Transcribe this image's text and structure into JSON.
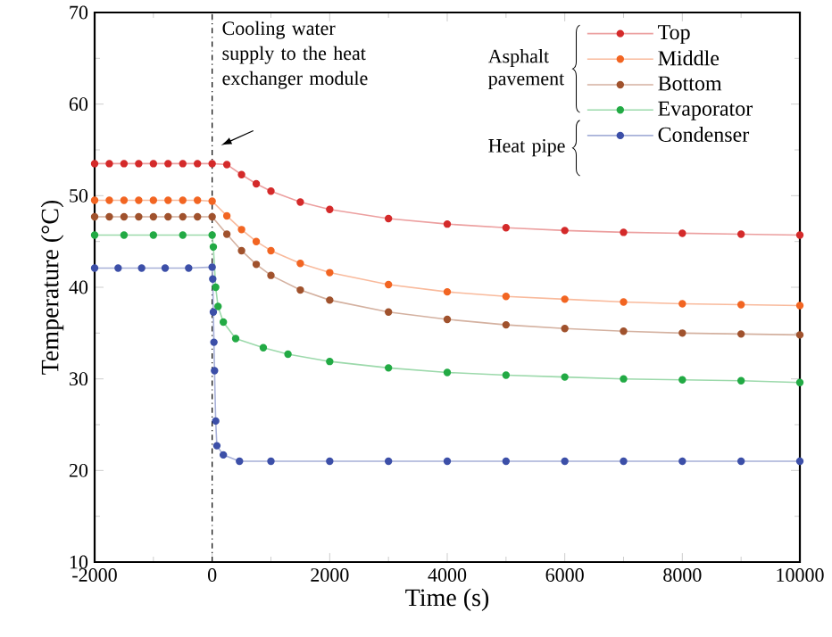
{
  "chart_data": {
    "type": "line",
    "xlabel": "Time (s)",
    "ylabel": "Temperature (°C)",
    "xlim": [
      -2000,
      10000
    ],
    "ylim": [
      10,
      70
    ],
    "xticks": [
      -2000,
      0,
      2000,
      4000,
      6000,
      8000,
      10000
    ],
    "yticks": [
      10,
      20,
      30,
      40,
      50,
      60,
      70
    ],
    "marker": "circle",
    "legend": "top right",
    "ref_lines": [
      {
        "axis": "x",
        "value": 0
      }
    ],
    "annotations": [
      {
        "text": "Cooling water supply to the heat exchanger module",
        "x": 150,
        "y": 55.5
      },
      "Asphalt pavement",
      "Heat pipe"
    ],
    "series": [
      {
        "name": "Top",
        "color": "#d42a2a",
        "x": [
          -2000,
          -1750,
          -1500,
          -1250,
          -1000,
          -750,
          -500,
          -250,
          0,
          250,
          500,
          750,
          1000,
          1500,
          2000,
          3000,
          4000,
          5000,
          6000,
          7000,
          8000,
          9000,
          10000
        ],
        "values": [
          53.5,
          53.5,
          53.5,
          53.5,
          53.5,
          53.5,
          53.5,
          53.5,
          53.5,
          53.4,
          52.3,
          51.3,
          50.5,
          49.3,
          48.5,
          47.5,
          46.9,
          46.5,
          46.2,
          46.0,
          45.9,
          45.8,
          45.7
        ]
      },
      {
        "name": "Middle",
        "color": "#f26522",
        "x": [
          -2000,
          -1750,
          -1500,
          -1250,
          -1000,
          -750,
          -500,
          -250,
          0,
          250,
          500,
          750,
          1000,
          1500,
          2000,
          3000,
          4000,
          5000,
          6000,
          7000,
          8000,
          9000,
          10000
        ],
        "values": [
          49.5,
          49.5,
          49.5,
          49.5,
          49.5,
          49.5,
          49.5,
          49.5,
          49.4,
          47.8,
          46.3,
          45.0,
          44.0,
          42.6,
          41.6,
          40.3,
          39.5,
          39.0,
          38.7,
          38.4,
          38.2,
          38.1,
          38.0
        ]
      },
      {
        "name": "Bottom",
        "color": "#a0522d",
        "x": [
          -2000,
          -1750,
          -1500,
          -1250,
          -1000,
          -750,
          -500,
          -250,
          0,
          250,
          500,
          750,
          1000,
          1500,
          2000,
          3000,
          4000,
          5000,
          6000,
          7000,
          8000,
          9000,
          10000
        ],
        "values": [
          47.7,
          47.7,
          47.7,
          47.7,
          47.7,
          47.7,
          47.7,
          47.7,
          47.7,
          45.8,
          44.0,
          42.5,
          41.3,
          39.7,
          38.6,
          37.3,
          36.5,
          35.9,
          35.5,
          35.2,
          35.0,
          34.9,
          34.8
        ]
      },
      {
        "name": "Evaporator",
        "color": "#22aa44",
        "x": [
          -2000,
          -1500,
          -1000,
          -500,
          0,
          20,
          60,
          100,
          190,
          400,
          870,
          1290,
          2000,
          3000,
          4000,
          5000,
          6000,
          7000,
          8000,
          9000,
          10000
        ],
        "values": [
          45.7,
          45.7,
          45.7,
          45.7,
          45.7,
          44.4,
          40.0,
          37.9,
          36.2,
          34.4,
          33.4,
          32.7,
          31.9,
          31.2,
          30.7,
          30.4,
          30.2,
          30.0,
          29.9,
          29.8,
          29.6
        ]
      },
      {
        "name": "Condenser",
        "color": "#3c4fa8",
        "x": [
          -2000,
          -1600,
          -1200,
          -800,
          -400,
          0,
          10,
          20,
          30,
          40,
          60,
          80,
          190,
          465,
          1000,
          2000,
          3000,
          4000,
          5000,
          6000,
          7000,
          8000,
          9000,
          10000
        ],
        "values": [
          42.1,
          42.1,
          42.1,
          42.1,
          42.1,
          42.2,
          40.9,
          37.3,
          34.0,
          30.9,
          25.4,
          22.7,
          21.7,
          21.0,
          21.0,
          21.0,
          21.0,
          21.0,
          21.0,
          21.0,
          21.0,
          21.0,
          21.0,
          21.0
        ]
      }
    ]
  }
}
